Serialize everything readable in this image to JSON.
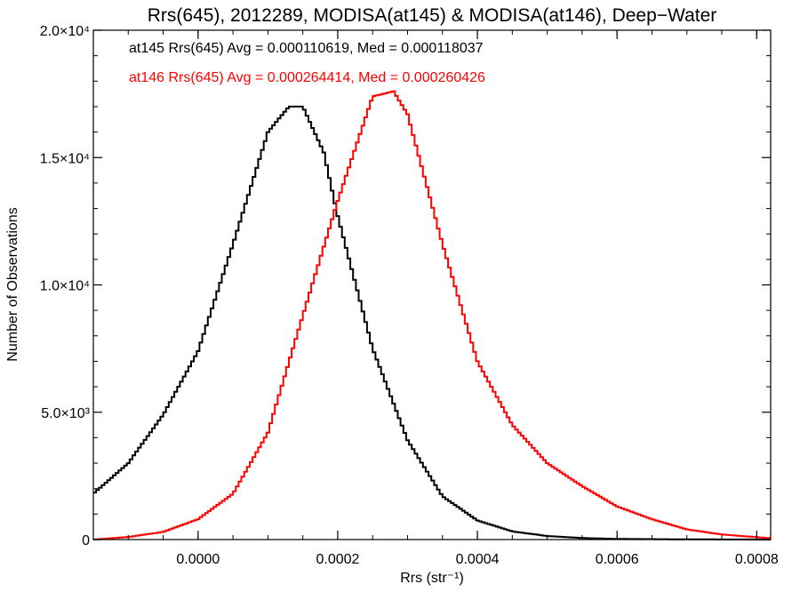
{
  "chart_data": {
    "type": "line",
    "title": "Rrs(645), 2012289, MODISA(at145) & MODISA(at146), Deep−Water",
    "xlabel": "Rrs (str⁻¹)",
    "ylabel": "Number of Observations",
    "xlim": [
      -0.00015,
      0.00082
    ],
    "ylim": [
      0,
      20000
    ],
    "x_ticks": [
      0.0,
      0.0002,
      0.0004,
      0.0006,
      0.0008
    ],
    "x_tick_labels": [
      "0.0000",
      "0.0002",
      "0.0004",
      "0.0006",
      "0.0008"
    ],
    "y_ticks": [
      0,
      5000,
      10000,
      15000,
      20000
    ],
    "y_tick_labels": [
      "0",
      "5.0×10³",
      "1.0×10⁴",
      "1.5×10⁴",
      "2.0×10⁴"
    ],
    "grid": false,
    "annotations": [
      {
        "text": "at145 Rrs(645) Avg = 0.000110619, Med = 0.000118037",
        "color": "#000000"
      },
      {
        "text": "at146 Rrs(645) Avg = 0.000264414, Med = 0.000260426",
        "color": "#ff0000"
      }
    ],
    "series": [
      {
        "color": "#000000",
        "x": [
          -0.00015,
          -0.0001,
          -5e-05,
          0.0,
          5e-05,
          0.0001,
          0.00013,
          0.00015,
          0.00018,
          0.0002,
          0.00025,
          0.0003,
          0.00035,
          0.0004,
          0.00045,
          0.0005,
          0.00055,
          0.0006,
          0.0007,
          0.00082
        ],
        "values": [
          1800,
          3000,
          4900,
          7400,
          11600,
          16000,
          17000,
          17000,
          15200,
          12700,
          7500,
          3900,
          1700,
          750,
          320,
          140,
          60,
          25,
          8,
          0
        ]
      },
      {
        "color": "#ff0000",
        "x": [
          -0.00015,
          -0.0001,
          -5e-05,
          0.0,
          5e-05,
          0.0001,
          0.00015,
          0.0002,
          0.00025,
          0.00028,
          0.0003,
          0.00035,
          0.0004,
          0.00045,
          0.0005,
          0.00055,
          0.0006,
          0.00065,
          0.0007,
          0.00075,
          0.00082
        ],
        "values": [
          0,
          100,
          300,
          800,
          1800,
          4200,
          8800,
          13300,
          17400,
          17600,
          16700,
          11600,
          7000,
          4500,
          3000,
          2100,
          1300,
          800,
          400,
          200,
          50
        ]
      }
    ]
  }
}
